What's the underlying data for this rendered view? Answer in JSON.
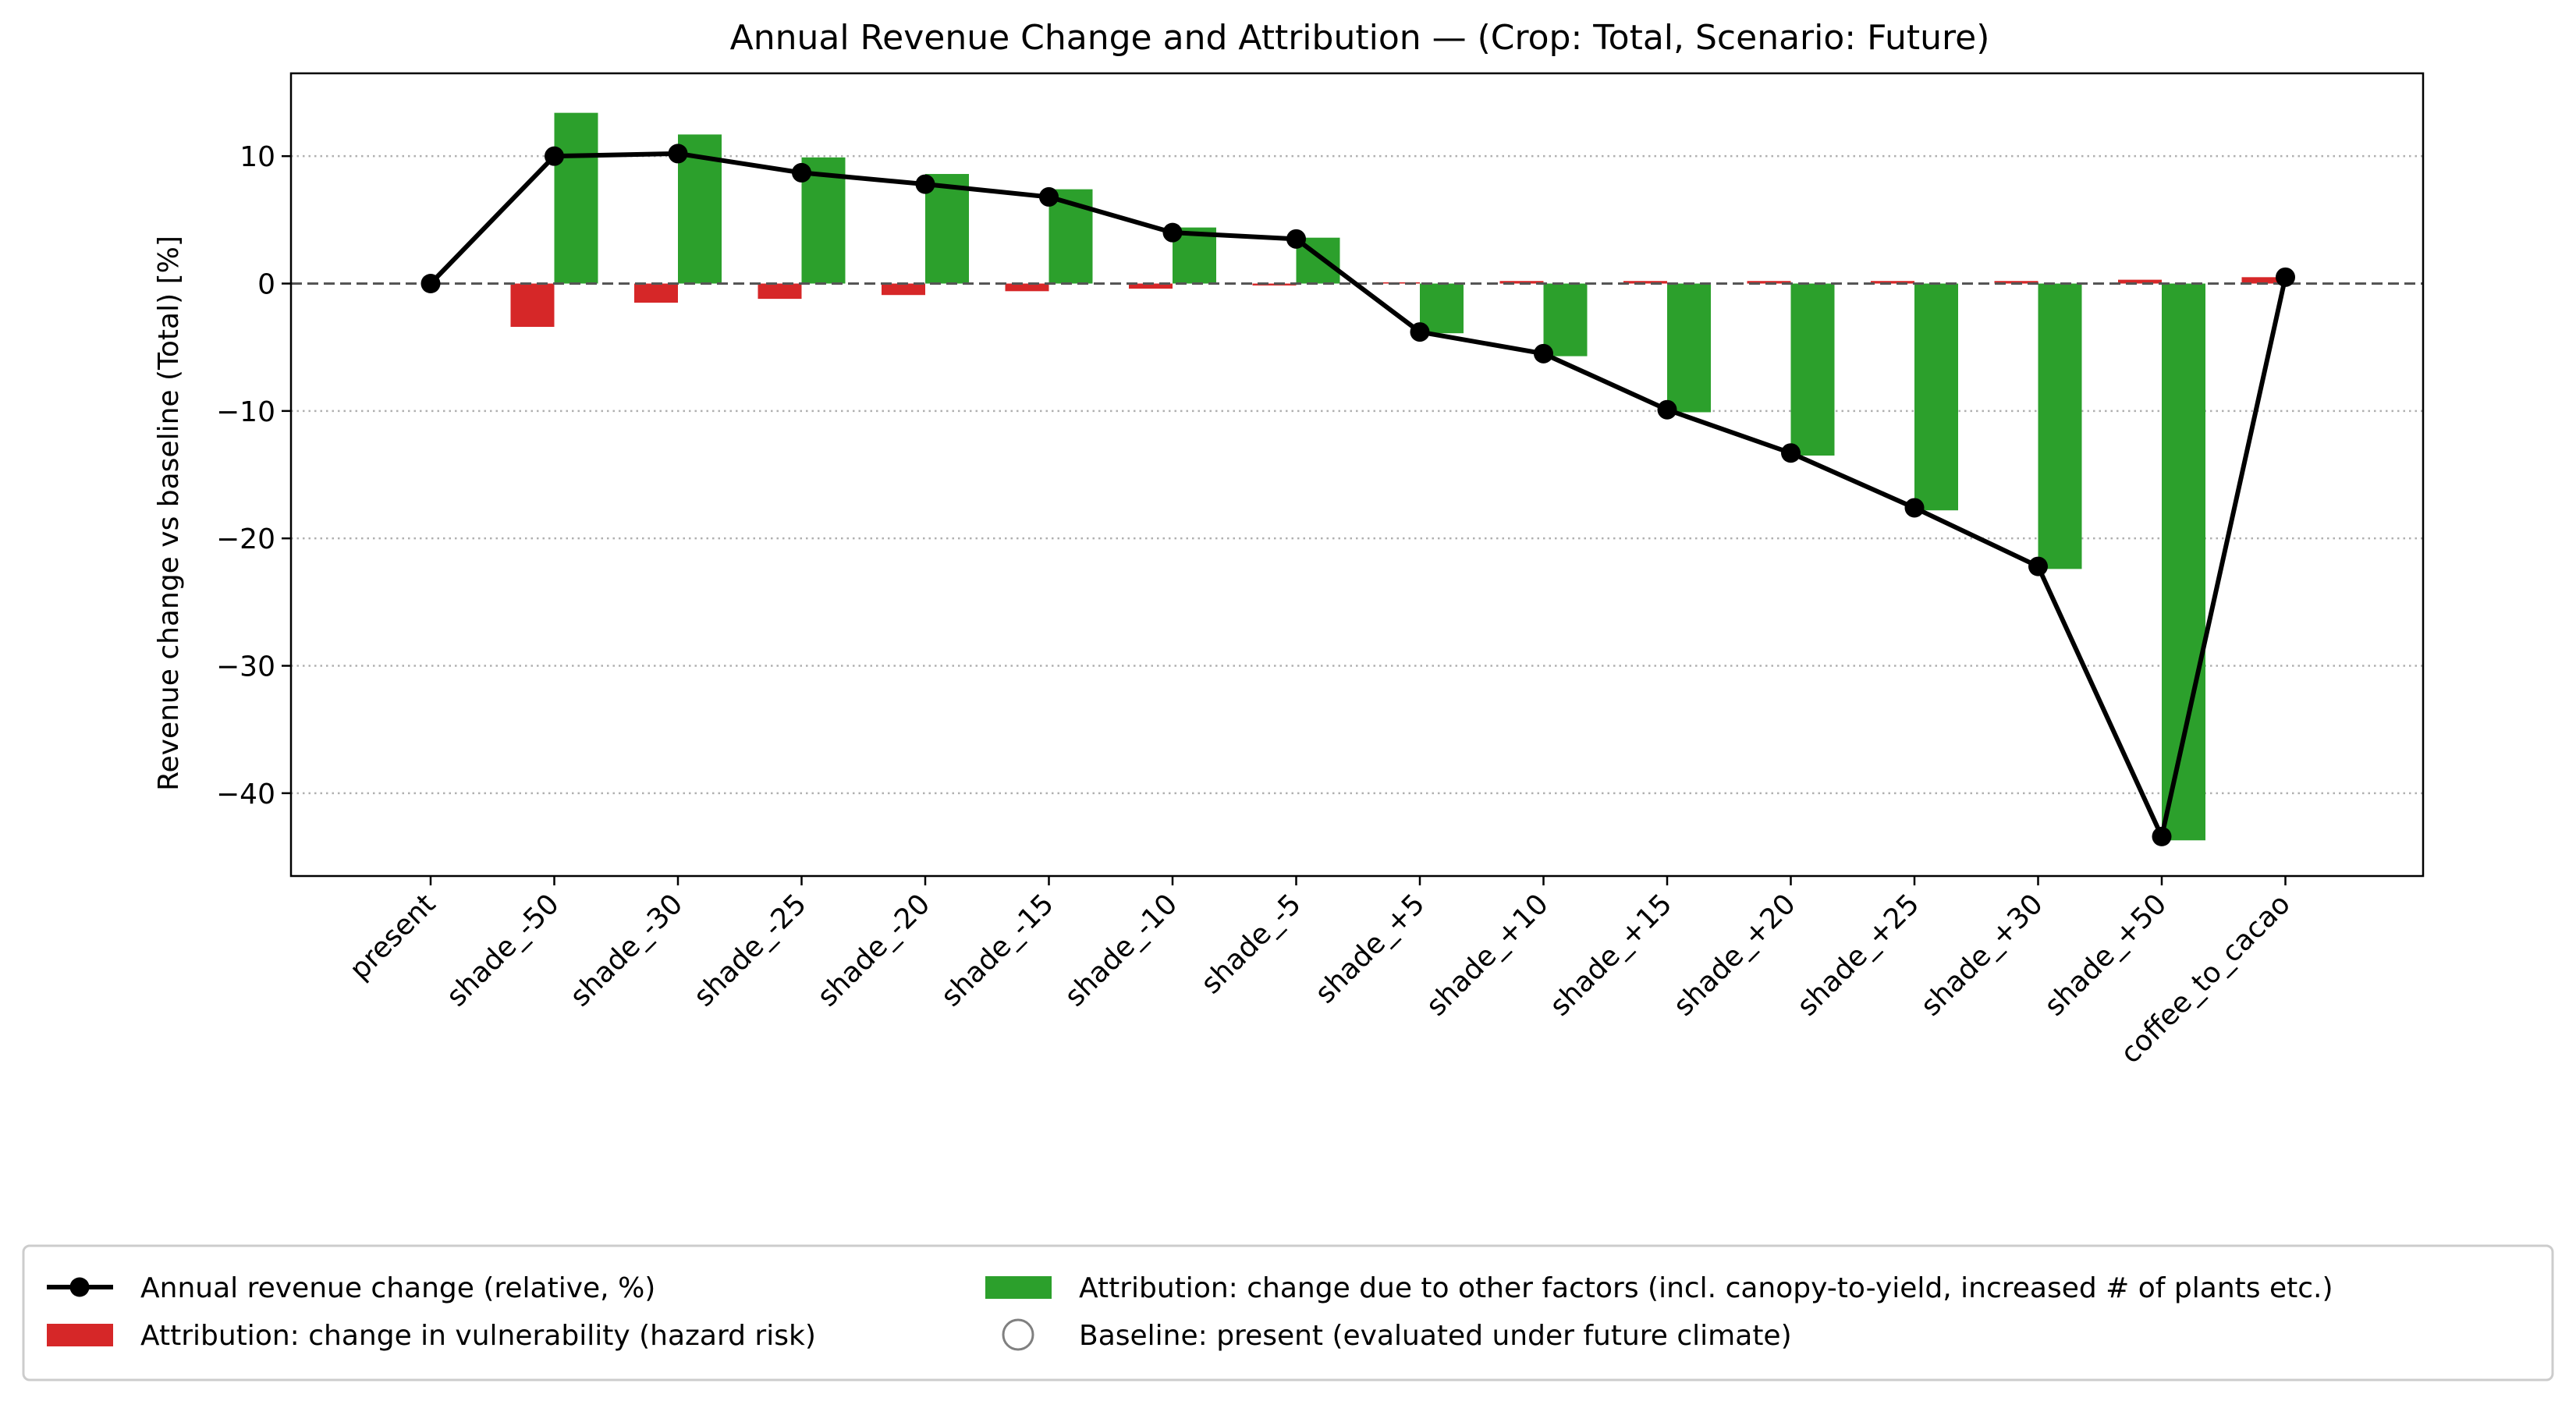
{
  "chart_data": {
    "type": "bar",
    "title": "Annual Revenue Change and Attribution — (Crop: Total, Scenario: Future)",
    "xlabel": "",
    "ylabel": "Revenue change vs baseline (Total) [%]",
    "ylim": [
      -46.5,
      16.5
    ],
    "yticks": [
      10,
      0,
      -10,
      -20,
      -30,
      -40
    ],
    "ytick_labels": [
      "10",
      "0",
      "−10",
      "−20",
      "−30",
      "−40"
    ],
    "grid": "horizontal dotted",
    "categories": [
      "present",
      "shade_-50",
      "shade_-30",
      "shade_-25",
      "shade_-20",
      "shade_-15",
      "shade_-10",
      "shade_-5",
      "shade_+5",
      "shade_+10",
      "shade_+15",
      "shade_+20",
      "shade_+25",
      "shade_+30",
      "shade_+50",
      "coffee_to_cacao"
    ],
    "series": [
      {
        "name": "Annual revenue change (relative, %)",
        "kind": "line",
        "color": "#000000",
        "values": [
          0,
          10.0,
          10.2,
          8.7,
          7.8,
          6.8,
          4.0,
          3.5,
          -3.8,
          -5.5,
          -9.9,
          -13.3,
          -17.6,
          -22.2,
          -43.4,
          0.5
        ]
      },
      {
        "name": "Attribution: change in vulnerability (hazard risk)",
        "kind": "bar",
        "color": "#d62728",
        "values": [
          0,
          -3.4,
          -1.5,
          -1.2,
          -0.9,
          -0.6,
          -0.4,
          -0.15,
          0.1,
          0.2,
          0.2,
          0.2,
          0.2,
          0.2,
          0.3,
          0.5
        ]
      },
      {
        "name": "Attribution: change due to other factors (incl. canopy-to-yield, increased # of plants etc.)",
        "kind": "bar",
        "color": "#2ca02c",
        "values": [
          0,
          13.4,
          11.7,
          9.9,
          8.6,
          7.4,
          4.4,
          3.6,
          -3.9,
          -5.7,
          -10.1,
          -13.5,
          -17.8,
          -22.4,
          -43.7,
          0
        ]
      }
    ],
    "baseline_reference": {
      "value": 0,
      "style": "dashed",
      "color": "#555555"
    },
    "legend": {
      "placement": "bottom",
      "entries": [
        {
          "label": "Annual revenue change (relative, %)",
          "symbol": "line-marker",
          "color": "#000000"
        },
        {
          "label": "Attribution: change in vulnerability (hazard risk)",
          "symbol": "patch",
          "color": "#d62728"
        },
        {
          "label": "Attribution: change due to other factors (incl. canopy-to-yield, increased # of plants etc.)",
          "symbol": "patch",
          "color": "#2ca02c"
        },
        {
          "label": "Baseline: present (evaluated under future climate)",
          "symbol": "hollow-circle",
          "color": "#808080"
        }
      ]
    }
  }
}
